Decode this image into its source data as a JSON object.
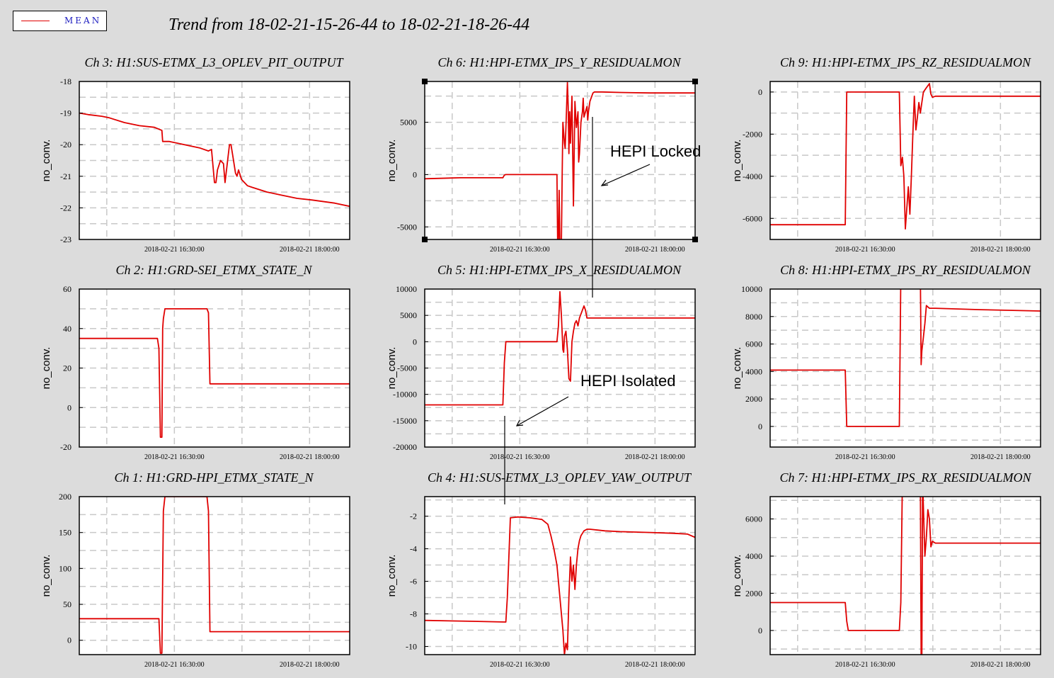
{
  "legend": {
    "label": "MEAN",
    "color": "#e00000"
  },
  "title": "Trend from 18-02-21-15-26-44 to 18-02-21-18-26-44",
  "annotations": [
    {
      "text": "HEPI Locked",
      "panel": "Ch 6: H1:HPI-ETMX_IPS_Y_RESIDUALMON"
    },
    {
      "text": "HEPI Isolated",
      "panel": "Ch 5: H1:HPI-ETMX_IPS_X_RESIDUALMON"
    }
  ],
  "chart_data": [
    {
      "type": "line",
      "title": "Ch 3: H1:SUS-ETMX_L3_OPLEV_PIT_OUTPUT",
      "ylabel": "no_conv.",
      "xlim": [
        0,
        180
      ],
      "ylim": [
        -23,
        -18
      ],
      "yticks": [
        -23,
        -22,
        -21,
        -20,
        -19,
        -18
      ],
      "yticklabels": [
        "-23",
        "-22",
        "-21",
        "-20",
        "-19",
        "-18"
      ],
      "xticks": [
        63.3,
        153.3
      ],
      "xticklabels": [
        "2018-02-21 16:30:00",
        "2018-02-21 18:00:00"
      ],
      "series": [
        {
          "x": [
            0,
            6,
            15,
            20,
            30,
            40,
            50,
            55,
            55.5,
            60,
            70,
            80,
            86,
            88,
            90,
            91,
            92,
            94,
            96,
            97,
            98,
            99,
            100,
            101,
            102,
            104,
            105,
            106,
            108,
            110,
            112,
            115,
            125,
            135,
            145,
            155,
            170,
            180
          ],
          "y": [
            -19,
            -19.05,
            -19.1,
            -19.15,
            -19.3,
            -19.4,
            -19.45,
            -19.55,
            -19.9,
            -19.9,
            -20.0,
            -20.1,
            -20.2,
            -20.15,
            -21.2,
            -21.2,
            -20.8,
            -20.5,
            -20.6,
            -21.2,
            -20.8,
            -20.4,
            -20.0,
            -20.0,
            -20.3,
            -20.9,
            -21.0,
            -20.8,
            -21.1,
            -21.2,
            -21.3,
            -21.35,
            -21.5,
            -21.6,
            -21.7,
            -21.75,
            -21.85,
            -21.95
          ]
        }
      ]
    },
    {
      "type": "line",
      "title": "Ch 6: H1:HPI-ETMX_IPS_Y_RESIDUALMON",
      "ylabel": "no_conv.",
      "xlim": [
        0,
        180
      ],
      "ylim": [
        -6200,
        8900
      ],
      "yticks": [
        -5000,
        0,
        5000
      ],
      "yticklabels": [
        "-5000",
        "0",
        "5000"
      ],
      "xticks": [
        63.3,
        153.3
      ],
      "xticklabels": [
        "2018-02-21 16:30:00",
        "2018-02-21 18:00:00"
      ],
      "series": [
        {
          "x": [
            0,
            24,
            52,
            53,
            54,
            88,
            88.5,
            89,
            89.5,
            90,
            91,
            91.5,
            92,
            93,
            93.5,
            94,
            95,
            95.5,
            96,
            96.5,
            97,
            98,
            99,
            100,
            101,
            102,
            102.5,
            103,
            104,
            105,
            105.5,
            106,
            108,
            108.5,
            109,
            110,
            112,
            113,
            114,
            116,
            118,
            130,
            150,
            180
          ],
          "y": [
            -400,
            -300,
            -300,
            -50,
            0,
            0,
            -6500,
            -6500,
            -1500,
            -6500,
            -6500,
            0,
            5000,
            3000,
            2500,
            4500,
            8800,
            6500,
            2000,
            6000,
            3000,
            7500,
            -3000,
            7000,
            4500,
            6000,
            1200,
            2000,
            5000,
            6000,
            7300,
            5500,
            6500,
            5200,
            6000,
            7000,
            7800,
            7900,
            7900,
            7900,
            7900,
            7850,
            7800,
            7800
          ]
        }
      ]
    },
    {
      "type": "line",
      "title": "Ch 9: H1:HPI-ETMX_IPS_RZ_RESIDUALMON",
      "ylabel": "no_conv.",
      "xlim": [
        0,
        180
      ],
      "ylim": [
        -7000,
        500
      ],
      "yticks": [
        -6000,
        -4000,
        -2000,
        0
      ],
      "yticklabels": [
        "-6000",
        "-4000",
        "-2000",
        "0"
      ],
      "xticks": [
        63.3,
        153.3
      ],
      "xticklabels": [
        "2018-02-21 16:30:00",
        "2018-02-21 18:00:00"
      ],
      "series": [
        {
          "x": [
            0,
            50,
            51,
            52,
            86,
            87,
            88,
            89,
            90,
            91,
            92,
            93,
            94,
            95,
            96,
            97,
            98,
            99,
            100,
            101,
            102,
            104,
            106,
            107,
            108,
            110,
            120,
            140,
            180
          ],
          "y": [
            -6300,
            -6300,
            0,
            0,
            0,
            -3500,
            -3100,
            -4000,
            -6500,
            -5500,
            -4500,
            -5800,
            -4000,
            -2000,
            -200,
            -1800,
            -1200,
            -500,
            -1000,
            -500,
            0,
            200,
            400,
            -100,
            -250,
            -200,
            -200,
            -200,
            -200
          ]
        }
      ]
    },
    {
      "type": "line",
      "title": "Ch 2: H1:GRD-SEI_ETMX_STATE_N",
      "ylabel": "no_conv.",
      "xlim": [
        0,
        180
      ],
      "ylim": [
        -20,
        60
      ],
      "yticks": [
        -20,
        0,
        20,
        40,
        60
      ],
      "yticklabels": [
        "-20",
        "0",
        "20",
        "40",
        "60"
      ],
      "xticks": [
        63.3,
        153.3
      ],
      "xticklabels": [
        "2018-02-21 16:30:00",
        "2018-02-21 18:00:00"
      ],
      "series": [
        {
          "x": [
            0,
            52,
            53,
            54,
            55,
            55.5,
            56,
            57,
            58,
            85,
            86,
            87,
            88,
            180
          ],
          "y": [
            35,
            35,
            30,
            -15,
            -15,
            40,
            45,
            50,
            50,
            50,
            48,
            12,
            12,
            12
          ]
        }
      ]
    },
    {
      "type": "line",
      "title": "Ch 5: H1:HPI-ETMX_IPS_X_RESIDUALMON",
      "ylabel": "no_conv.",
      "xlim": [
        0,
        180
      ],
      "ylim": [
        -20000,
        10000
      ],
      "yticks": [
        -20000,
        -15000,
        -10000,
        -5000,
        0,
        5000,
        10000
      ],
      "yticklabels": [
        "-20000",
        "-15000",
        "-10000",
        "-5000",
        "0",
        "5000",
        "10000"
      ],
      "xticks": [
        63.3,
        153.3
      ],
      "xticklabels": [
        "2018-02-21 16:30:00",
        "2018-02-21 18:00:00"
      ],
      "series": [
        {
          "x": [
            0,
            52,
            53,
            54,
            88,
            89,
            90,
            91,
            92,
            92.5,
            93,
            94,
            95,
            96,
            97,
            98,
            99,
            100,
            101,
            102,
            103,
            105,
            106,
            107,
            108,
            110,
            130,
            180
          ],
          "y": [
            -12000,
            -12000,
            -4000,
            0,
            0,
            3000,
            9500,
            5000,
            -1500,
            -2000,
            1000,
            2000,
            -1500,
            -7000,
            -7500,
            0,
            2000,
            3500,
            4000,
            3000,
            4500,
            6000,
            6800,
            6000,
            4500,
            4500,
            4500,
            4500
          ]
        }
      ]
    },
    {
      "type": "line",
      "title": "Ch 8: H1:HPI-ETMX_IPS_RY_RESIDUALMON",
      "ylabel": "no_conv.",
      "xlim": [
        0,
        180
      ],
      "ylim": [
        -1500,
        10000
      ],
      "yticks": [
        0,
        2000,
        4000,
        6000,
        8000,
        10000
      ],
      "yticklabels": [
        "0",
        "2000",
        "4000",
        "6000",
        "8000",
        "10000"
      ],
      "xticks": [
        63.3,
        153.3
      ],
      "xticklabels": [
        "2018-02-21 16:30:00",
        "2018-02-21 18:00:00"
      ],
      "series": [
        {
          "x": [
            0,
            50,
            51,
            52,
            86,
            87,
            88,
            100,
            100.5,
            101,
            102,
            103,
            104,
            105,
            106,
            110,
            140,
            180
          ],
          "y": [
            4100,
            4100,
            0,
            0,
            0,
            11000,
            11000,
            11000,
            4500,
            5500,
            6500,
            7500,
            8800,
            8700,
            8600,
            8600,
            8500,
            8400
          ]
        }
      ]
    },
    {
      "type": "line",
      "title": "Ch 1: H1:GRD-HPI_ETMX_STATE_N",
      "ylabel": "no_conv.",
      "xlim": [
        0,
        180
      ],
      "ylim": [
        -20,
        200
      ],
      "yticks": [
        0,
        50,
        100,
        150,
        200
      ],
      "yticklabels": [
        "0",
        "50",
        "100",
        "150",
        "200"
      ],
      "xticks": [
        63.3,
        153.3
      ],
      "xticklabels": [
        "2018-02-21 16:30:00",
        "2018-02-21 18:00:00"
      ],
      "series": [
        {
          "x": [
            0,
            53,
            54,
            55,
            56,
            57,
            58,
            85,
            86,
            87,
            88,
            180
          ],
          "y": [
            30,
            30,
            -18,
            -18,
            180,
            200,
            200,
            200,
            180,
            12,
            12,
            12
          ]
        }
      ]
    },
    {
      "type": "line",
      "title": "Ch 4: H1:SUS-ETMX_L3_OPLEV_YAW_OUTPUT",
      "ylabel": "no_conv.",
      "xlim": [
        0,
        180
      ],
      "ylim": [
        -10.5,
        -0.8
      ],
      "yticks": [
        -10,
        -8,
        -6,
        -4,
        -2
      ],
      "yticklabels": [
        "-10",
        "-8",
        "-6",
        "-4",
        "-2"
      ],
      "xticks": [
        63.3,
        153.3
      ],
      "xticklabels": [
        "2018-02-21 16:30:00",
        "2018-02-21 18:00:00"
      ],
      "series": [
        {
          "x": [
            0,
            30,
            54,
            55,
            57,
            62,
            70,
            78,
            82,
            84,
            86,
            88,
            90,
            91,
            92,
            93,
            94,
            95,
            96,
            97,
            98,
            99,
            100,
            101,
            102,
            103,
            104,
            106,
            108,
            110,
            120,
            130,
            150,
            165,
            175,
            180
          ],
          "y": [
            -8.4,
            -8.45,
            -8.5,
            -7,
            -2.1,
            -2.05,
            -2.1,
            -2.2,
            -2.5,
            -3.2,
            -4,
            -5,
            -7,
            -8,
            -9,
            -10.5,
            -9.8,
            -10.2,
            -7,
            -4.5,
            -6,
            -5,
            -6.5,
            -5,
            -4,
            -3.5,
            -3.2,
            -2.9,
            -2.8,
            -2.8,
            -2.9,
            -2.95,
            -3.0,
            -3.05,
            -3.1,
            -3.3
          ]
        }
      ]
    },
    {
      "type": "line",
      "title": "Ch 7: H1:HPI-ETMX_IPS_RX_RESIDUALMON",
      "ylabel": "no_conv.",
      "xlim": [
        0,
        180
      ],
      "ylim": [
        -1300,
        7200
      ],
      "yticks": [
        0,
        2000,
        4000,
        6000
      ],
      "yticklabels": [
        "0",
        "2000",
        "4000",
        "6000"
      ],
      "xticks": [
        63.3,
        153.3
      ],
      "xticklabels": [
        "2018-02-21 16:30:00",
        "2018-02-21 18:00:00"
      ],
      "series": [
        {
          "x": [
            0,
            50,
            51,
            52,
            86,
            87,
            88,
            100,
            100.5,
            101,
            101.5,
            103,
            104,
            105,
            106,
            107,
            108,
            110,
            130,
            180
          ],
          "y": [
            1500,
            1500,
            500,
            0,
            0,
            1500,
            8000,
            8000,
            -1500,
            -1500,
            8000,
            4000,
            5000,
            6500,
            6000,
            4500,
            4800,
            4700,
            4700,
            4700
          ]
        }
      ]
    }
  ]
}
